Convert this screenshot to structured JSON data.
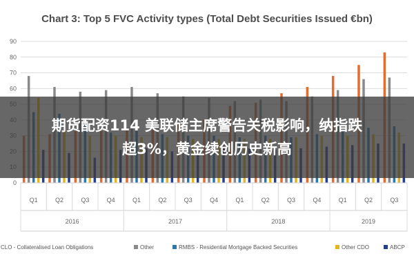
{
  "chart_data": {
    "type": "bar",
    "title": "Chart 3: Top 5 FVC Activity types (Total Debt Securities Issued €bn)",
    "ylim": [
      0,
      90
    ],
    "yticks": [
      0,
      10,
      20,
      30,
      40,
      50,
      60,
      70,
      80,
      90
    ],
    "grid": true,
    "legend_position": "bottom",
    "categories": [
      "Q1",
      "Q2",
      "Q3",
      "Q4",
      "Q1",
      "Q2",
      "Q3",
      "Q4",
      "Q1",
      "Q2",
      "Q3",
      "Q4",
      "Q1",
      "Q2",
      "Q3"
    ],
    "years": [
      {
        "label": "2016",
        "span": 4
      },
      {
        "label": "2017",
        "span": 4
      },
      {
        "label": "2018",
        "span": 4
      },
      {
        "label": "2019",
        "span": 3
      }
    ],
    "series": [
      {
        "name": "CLO - Collateralised Loan Obligations",
        "color": "#e46c2e",
        "values": [
          30,
          31,
          33,
          33,
          35,
          36,
          37,
          40,
          49,
          51,
          57,
          61,
          68,
          75,
          83
        ]
      },
      {
        "name": "Other",
        "color": "#8a8a8a",
        "values": [
          68,
          61,
          58,
          59,
          61,
          57,
          55,
          54,
          52,
          53,
          52,
          55,
          59,
          66,
          67
        ]
      },
      {
        "name": "RMBS - Residential Mortgage Backed Securities",
        "color": "#2c78ad",
        "values": [
          45,
          44,
          38,
          32,
          33,
          31,
          30,
          30,
          29,
          30,
          29,
          31,
          33,
          35,
          36
        ]
      },
      {
        "name": "Other CDO",
        "color": "#e3b51f",
        "values": [
          54,
          33,
          30,
          30,
          29,
          29,
          28,
          28,
          28,
          28,
          29,
          30,
          30,
          31,
          32
        ]
      },
      {
        "name": "ABCP",
        "color": "#243e8f",
        "values": [
          21,
          19,
          16,
          21,
          22,
          20,
          22,
          24,
          22,
          21,
          22,
          23,
          24,
          25,
          25
        ]
      }
    ]
  },
  "overlay": {
    "line1": "期货配资114 美联储主席警告关税影响，纳指跌",
    "line2": "超3%，黄金续创历史新高"
  }
}
